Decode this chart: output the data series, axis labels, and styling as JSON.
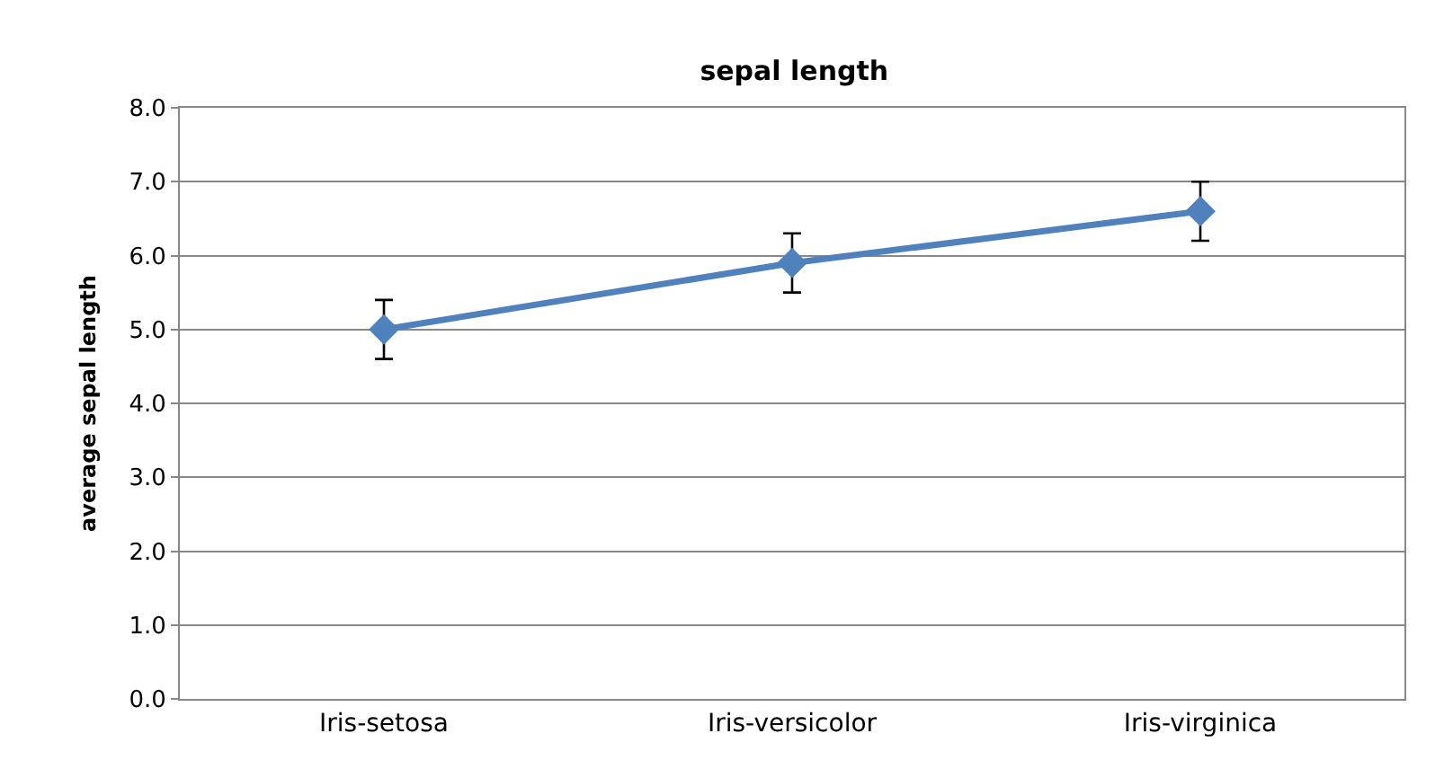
{
  "chart_data": {
    "type": "line",
    "title": "sepal length",
    "ylabel": "average sepal length",
    "categories": [
      "Iris-setosa",
      "Iris-versicolor",
      "Iris-virginica"
    ],
    "series": [
      {
        "color": "#4f81bd",
        "values": [
          5.0,
          5.9,
          6.6
        ],
        "errors": [
          0.4,
          0.4,
          0.4
        ]
      }
    ],
    "ylim": [
      0,
      8
    ],
    "yticks": [
      {
        "value": 0,
        "label": "0.0"
      },
      {
        "value": 1,
        "label": "1.0"
      },
      {
        "value": 2,
        "label": "2.0"
      },
      {
        "value": 3,
        "label": "3.0"
      },
      {
        "value": 4,
        "label": "4.0"
      },
      {
        "value": 5,
        "label": "5.0"
      },
      {
        "value": 6,
        "label": "6.0"
      },
      {
        "value": 7,
        "label": "7.0"
      },
      {
        "value": 8,
        "label": "8.0"
      }
    ],
    "grid": "y",
    "marker": "diamond",
    "line_style": "solid"
  }
}
